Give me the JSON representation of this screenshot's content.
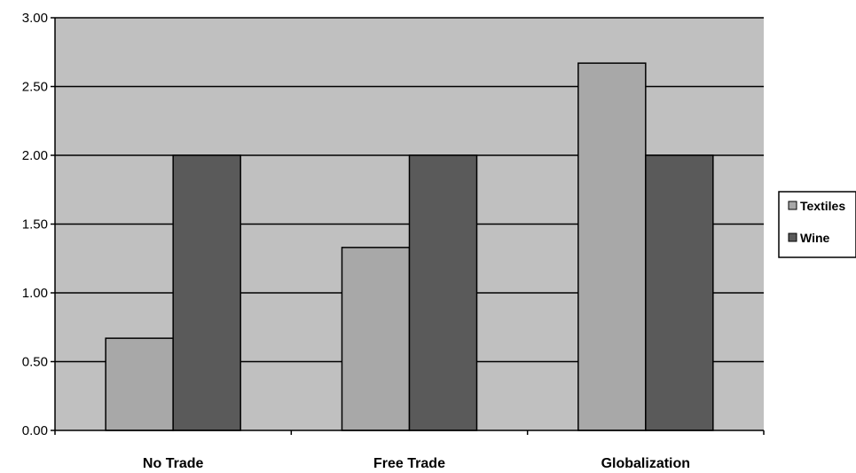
{
  "chart_data": {
    "type": "bar",
    "categories": [
      "No Trade",
      "Free Trade",
      "Globalization"
    ],
    "series": [
      {
        "name": "Textiles",
        "values": [
          0.67,
          1.33,
          2.67
        ]
      },
      {
        "name": "Wine",
        "values": [
          2.0,
          2.0,
          2.0
        ]
      }
    ],
    "ylim": [
      0,
      3
    ],
    "yticks": [
      "0.00",
      "0.50",
      "1.00",
      "1.50",
      "2.00",
      "2.50",
      "3.00"
    ],
    "grid": true,
    "legend_position": "right"
  },
  "colors": {
    "plot_background": "#c0c0c0",
    "Textiles": "#a8a8a8",
    "Wine": "#5a5a5a"
  }
}
